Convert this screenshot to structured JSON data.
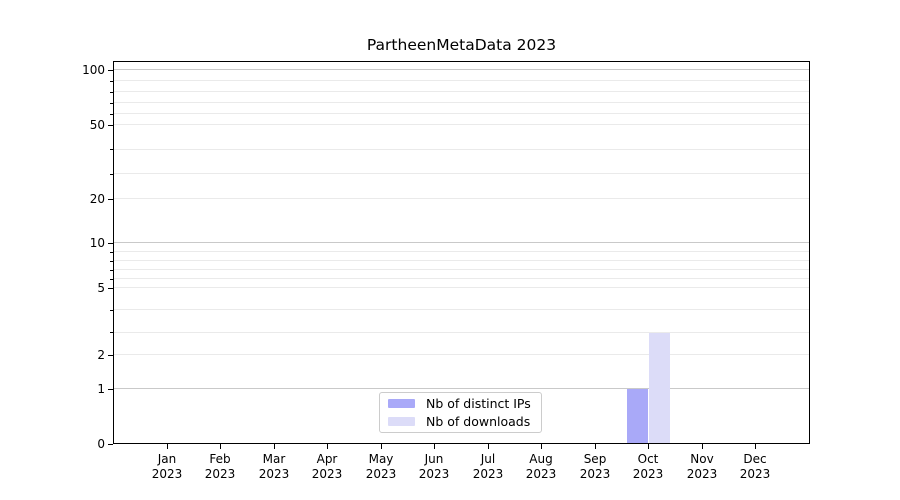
{
  "chart_data": {
    "type": "bar",
    "title": "PartheenMetaData 2023",
    "categories": [
      "Jan",
      "Feb",
      "Mar",
      "Apr",
      "May",
      "Jun",
      "Jul",
      "Aug",
      "Sep",
      "Oct",
      "Nov",
      "Dec"
    ],
    "category_year": "2023",
    "series": [
      {
        "name": "Nb of distinct IPs",
        "color": "#a9a9f8",
        "values": [
          0,
          0,
          0,
          0,
          0,
          0,
          0,
          0,
          0,
          1,
          0,
          0
        ]
      },
      {
        "name": "Nb of downloads",
        "color": "#dcdcf8",
        "values": [
          0,
          0,
          0,
          0,
          0,
          0,
          0,
          0,
          0,
          3,
          0,
          0
        ]
      }
    ],
    "yaxis": {
      "scale": "asinh",
      "ylim": [
        0,
        100
      ],
      "ticks": [
        0,
        1,
        2,
        5,
        10,
        20,
        50,
        100
      ],
      "minor_ticks": [
        3,
        4,
        6,
        7,
        8,
        9,
        30,
        40,
        60,
        70,
        80,
        90
      ],
      "major_gridlines": [
        1,
        10,
        100
      ],
      "grid_major_color": "#c9c9c9",
      "grid_minor_color": "#eaeaea"
    },
    "xaxis": {
      "tick_label_format": "month over year"
    },
    "legend": {
      "position": "lower center"
    }
  }
}
